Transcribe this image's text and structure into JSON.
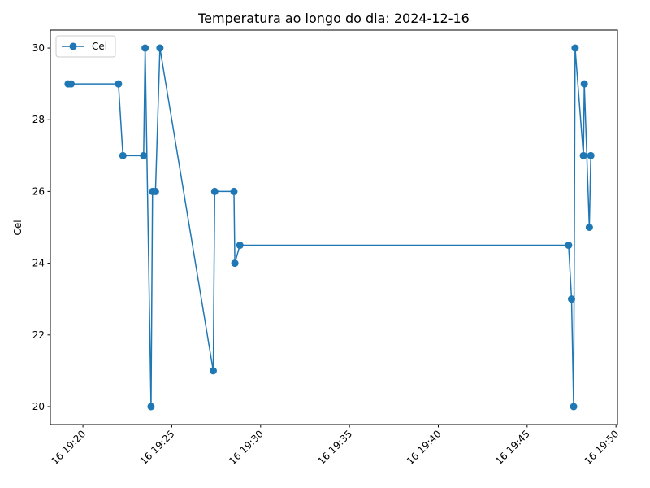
{
  "chart_data": {
    "type": "line",
    "title": "Temperatura ao longo do dia: 2024-12-16",
    "xlabel": "",
    "ylabel": "Cel",
    "xlim": [
      "2024-12-16 19:18:10",
      "2024-12-16 19:50:05"
    ],
    "ylim": [
      19.5,
      30.5
    ],
    "x_ticks": [
      "16 19:20",
      "16 19:25",
      "16 19:30",
      "16 19:35",
      "16 19:40",
      "16 19:45",
      "16 19:50"
    ],
    "y_ticks": [
      20,
      22,
      24,
      26,
      28,
      30
    ],
    "grid": false,
    "legend": "upper-left",
    "marker": "circle",
    "color": "#1f77b4",
    "series": [
      {
        "name": "Cel",
        "x": [
          "2024-12-16 19:19:10",
          "2024-12-16 19:19:20",
          "2024-12-16 19:22:00",
          "2024-12-16 19:22:15",
          "2024-12-16 19:23:25",
          "2024-12-16 19:23:30",
          "2024-12-16 19:23:50",
          "2024-12-16 19:23:55",
          "2024-12-16 19:24:05",
          "2024-12-16 19:24:20",
          "2024-12-16 19:27:20",
          "2024-12-16 19:27:25",
          "2024-12-16 19:28:30",
          "2024-12-16 19:28:33",
          "2024-12-16 19:28:50",
          "2024-12-16 19:47:20",
          "2024-12-16 19:47:30",
          "2024-12-16 19:47:37",
          "2024-12-16 19:47:42",
          "2024-12-16 19:48:10",
          "2024-12-16 19:48:13",
          "2024-12-16 19:48:30",
          "2024-12-16 19:48:35"
        ],
        "values": [
          29,
          29,
          29,
          27,
          27,
          30,
          20,
          26,
          26,
          30,
          21,
          26,
          26,
          24,
          24.5,
          24.5,
          23,
          20,
          30,
          27,
          29,
          25,
          27
        ]
      }
    ]
  }
}
